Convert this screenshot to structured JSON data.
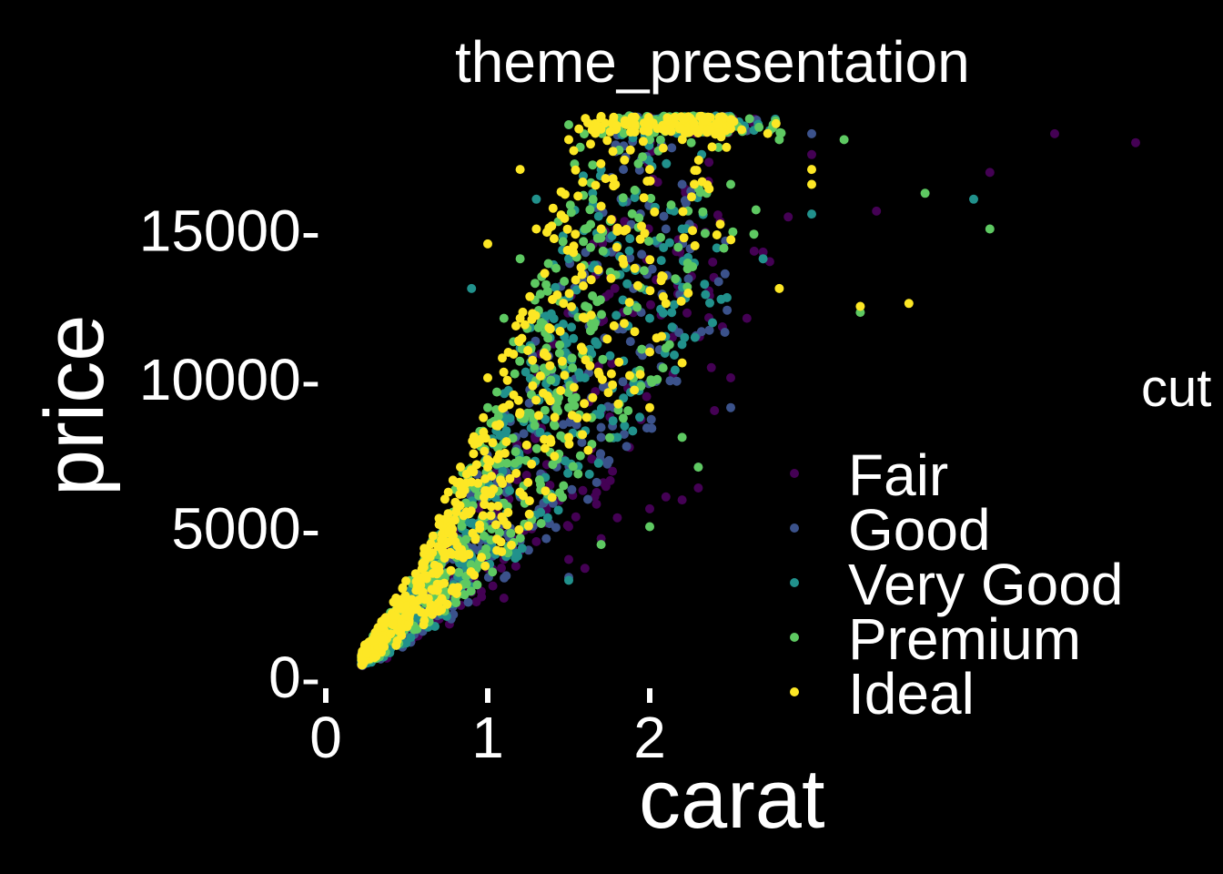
{
  "chart_data": {
    "type": "scatter",
    "title": "theme_presentation",
    "xlabel": "carat",
    "ylabel": "price",
    "xlim": [
      0,
      5.3
    ],
    "ylim": [
      0,
      19000
    ],
    "x_ticks": [
      "0",
      "1",
      "2"
    ],
    "y_ticks": [
      "0-",
      "5000-",
      "10000-",
      "15000-"
    ],
    "y_tick_values": [
      0,
      5000,
      10000,
      15000
    ],
    "x_tick_values": [
      0,
      1,
      2
    ],
    "background": "#000000",
    "grid": false,
    "legend": {
      "title": "cut",
      "position": "right",
      "items": [
        {
          "label": "Fair",
          "color": "#440154"
        },
        {
          "label": "Good",
          "color": "#3b528b"
        },
        {
          "label": "Very Good",
          "color": "#21918c"
        },
        {
          "label": "Premium",
          "color": "#5ec962"
        },
        {
          "label": "Ideal",
          "color": "#fde725"
        }
      ]
    },
    "series": [
      {
        "name": "Fair",
        "color": "#440154",
        "points": [
          [
            0.9,
            2800
          ],
          [
            1.0,
            3600
          ],
          [
            1.1,
            3900
          ],
          [
            1.2,
            4200
          ],
          [
            1.3,
            4500
          ],
          [
            1.5,
            5000
          ],
          [
            1.5,
            3900
          ],
          [
            1.7,
            4600
          ],
          [
            1.8,
            5300
          ],
          [
            2.0,
            5600
          ],
          [
            2.1,
            6000
          ],
          [
            2.2,
            5900
          ],
          [
            2.3,
            6300
          ],
          [
            2.3,
            7000
          ],
          [
            2.5,
            10000
          ],
          [
            2.6,
            12000
          ],
          [
            2.7,
            14000
          ],
          [
            3.0,
            17500
          ],
          [
            3.4,
            15600
          ],
          [
            4.1,
            16900
          ],
          [
            4.5,
            18200
          ],
          [
            5.0,
            17900
          ],
          [
            1.1,
            2600
          ],
          [
            0.7,
            1900
          ],
          [
            1.6,
            3600
          ],
          [
            2.4,
            8900
          ]
        ]
      },
      {
        "name": "Good",
        "color": "#3b528b",
        "points": [
          [
            0.5,
            1300
          ],
          [
            0.8,
            2600
          ],
          [
            1.0,
            4500
          ],
          [
            1.2,
            6000
          ],
          [
            1.5,
            9000
          ],
          [
            1.5,
            3300
          ],
          [
            1.6,
            12000
          ],
          [
            1.7,
            8000
          ],
          [
            2.0,
            11000
          ],
          [
            2.1,
            15000
          ],
          [
            2.5,
            9000
          ],
          [
            2.6,
            18300
          ],
          [
            3.0,
            18200
          ],
          [
            0.4,
            900
          ],
          [
            1.1,
            5200
          ],
          [
            1.9,
            13000
          ],
          [
            2.2,
            16500
          ]
        ]
      },
      {
        "name": "Very Good",
        "color": "#21918c",
        "points": [
          [
            0.4,
            900
          ],
          [
            0.7,
            2200
          ],
          [
            0.9,
            4000
          ],
          [
            1.0,
            6000
          ],
          [
            1.1,
            8000
          ],
          [
            1.2,
            11000
          ],
          [
            1.5,
            3200
          ],
          [
            1.5,
            14000
          ],
          [
            1.6,
            10000
          ],
          [
            1.8,
            8000
          ],
          [
            2.0,
            12000
          ],
          [
            2.2,
            15000
          ],
          [
            3.0,
            15500
          ],
          [
            4.0,
            16000
          ],
          [
            2.7,
            14000
          ],
          [
            1.3,
            16000
          ],
          [
            0.9,
            13000
          ],
          [
            1.7,
            17000
          ]
        ]
      },
      {
        "name": "Premium",
        "color": "#5ec962",
        "points": [
          [
            0.6,
            2700
          ],
          [
            0.9,
            3500
          ],
          [
            1.0,
            9000
          ],
          [
            1.1,
            12000
          ],
          [
            1.2,
            14000
          ],
          [
            1.5,
            9000
          ],
          [
            1.5,
            18500
          ],
          [
            1.6,
            15000
          ],
          [
            1.7,
            4400
          ],
          [
            2.0,
            5000
          ],
          [
            2.0,
            18000
          ],
          [
            2.1,
            11000
          ],
          [
            2.2,
            8000
          ],
          [
            2.5,
            16500
          ],
          [
            2.8,
            18000
          ],
          [
            3.2,
            18000
          ],
          [
            3.7,
            16200
          ],
          [
            4.1,
            15000
          ],
          [
            3.3,
            12200
          ],
          [
            2.3,
            7000
          ],
          [
            1.9,
            10000
          ],
          [
            0.8,
            2600
          ]
        ]
      },
      {
        "name": "Ideal",
        "color": "#fde725",
        "points": [
          [
            0.3,
            600
          ],
          [
            0.35,
            1000
          ],
          [
            0.4,
            1400
          ],
          [
            0.5,
            2000
          ],
          [
            0.6,
            2800
          ],
          [
            0.7,
            3500
          ],
          [
            0.8,
            4500
          ],
          [
            0.9,
            6500
          ],
          [
            1.0,
            7000
          ],
          [
            1.0,
            10000
          ],
          [
            1.0,
            14500
          ],
          [
            1.1,
            9000
          ],
          [
            1.2,
            12000
          ],
          [
            1.2,
            17000
          ],
          [
            1.3,
            15000
          ],
          [
            1.5,
            8000
          ],
          [
            1.5,
            18000
          ],
          [
            1.6,
            12000
          ],
          [
            1.7,
            15000
          ],
          [
            2.0,
            17000
          ],
          [
            2.0,
            9000
          ],
          [
            2.1,
            12500
          ],
          [
            2.2,
            10500
          ],
          [
            3.0,
            16500
          ],
          [
            3.0,
            17000
          ],
          [
            3.3,
            12400
          ],
          [
            3.6,
            12500
          ],
          [
            2.8,
            13000
          ]
        ]
      }
    ]
  }
}
